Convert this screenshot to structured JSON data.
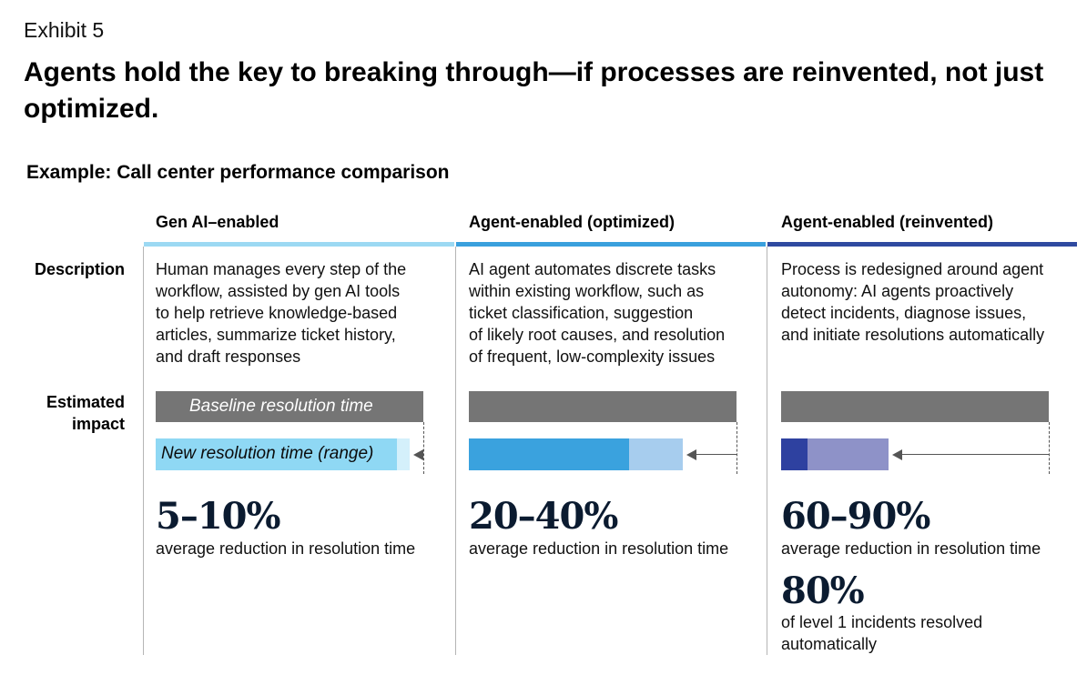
{
  "exhibit": "Exhibit 5",
  "title": "Agents hold the key to breaking through—if processes are reinvented, not just optimized.",
  "subtitle": "Example: Call center performance comparison",
  "row_labels": {
    "description": "Description",
    "impact_line1": "Estimated",
    "impact_line2": "impact"
  },
  "bar_labels": {
    "baseline": "Baseline resolution time",
    "new": "New resolution time (range)"
  },
  "colors": {
    "baseline_bar": "#757575",
    "arrow": "#555555",
    "col1_rule": "#9cd9f3",
    "col1_dark": "#8fd8f4",
    "col1_light": "#d4f0fb",
    "col2_rule": "#3aa0dd",
    "col2_dark": "#3aa2de",
    "col2_light": "#a7cdee",
    "col3_rule": "#2f4aa0",
    "col3_dark": "#2e41a0",
    "col3_light": "#8e92c8"
  },
  "columns": [
    {
      "title": "Gen AI–enabled",
      "description": [
        "Human manages every step of the",
        "workflow, assisted by gen AI tools",
        "to help retrieve knowledge-based",
        "articles, summarize ticket history,",
        "and draft responses"
      ],
      "reduction_range": [
        5,
        10
      ],
      "metric": "5–10%",
      "metric_label": "average reduction in resolution time"
    },
    {
      "title": "Agent-enabled (optimized)",
      "description": [
        "AI agent automates discrete tasks",
        "within existing workflow, such as",
        "ticket classification, suggestion",
        "of likely root causes, and resolution",
        "of frequent, low-complexity issues"
      ],
      "reduction_range": [
        20,
        40
      ],
      "metric": "20–40%",
      "metric_label": "average reduction in resolution time"
    },
    {
      "title": "Agent-enabled (reinvented)",
      "description": [
        "Process is redesigned around agent",
        "autonomy: AI agents proactively",
        "detect incidents, diagnose issues,",
        "and initiate resolutions automatically"
      ],
      "reduction_range": [
        60,
        90
      ],
      "metric": "60–90%",
      "metric_label": "average reduction in resolution time",
      "metric2": "80%",
      "metric2_label": [
        "of level 1 incidents resolved",
        "automatically"
      ]
    }
  ]
}
